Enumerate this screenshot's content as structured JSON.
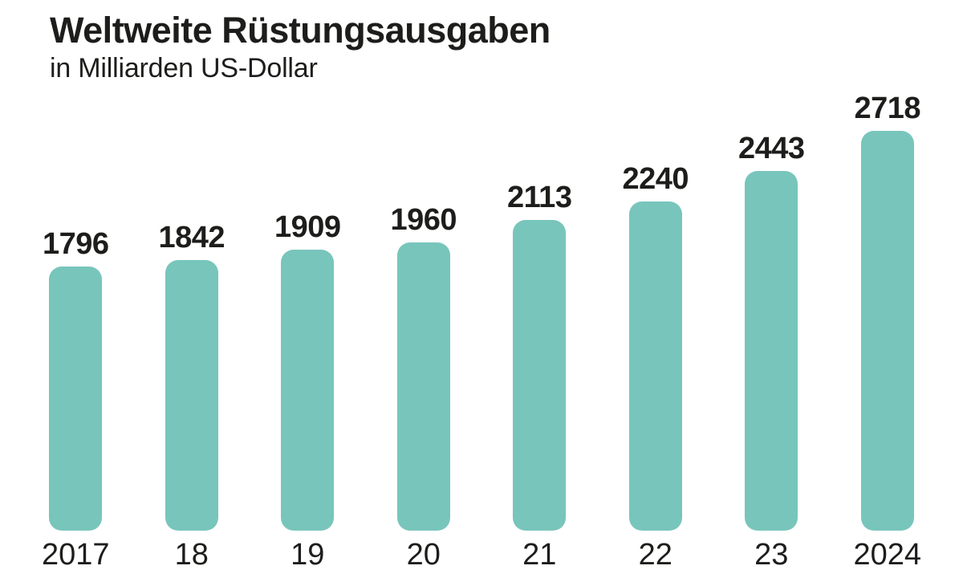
{
  "header": {
    "title": "Weltweite Rüstungsausgaben",
    "subtitle": "in Milliarden US-Dollar"
  },
  "chart_data": {
    "type": "bar",
    "title": "Weltweite Rüstungsausgaben",
    "subtitle": "in Milliarden US-Dollar",
    "categories": [
      "2017",
      "18",
      "19",
      "20",
      "21",
      "22",
      "23",
      "2024"
    ],
    "values": [
      1796,
      1842,
      1909,
      1960,
      2113,
      2240,
      2443,
      2718
    ],
    "xlabel": "",
    "ylabel": "Milliarden US-Dollar",
    "ylim": [
      0,
      2718
    ],
    "grid": false,
    "legend": "none",
    "value_labels_position": "above-bars",
    "bar_color": "#78c5bb",
    "text_color": "#1d1d1b"
  },
  "colors": {
    "bar": "#78c5bb",
    "text": "#1d1d1b",
    "background": "#ffffff"
  }
}
